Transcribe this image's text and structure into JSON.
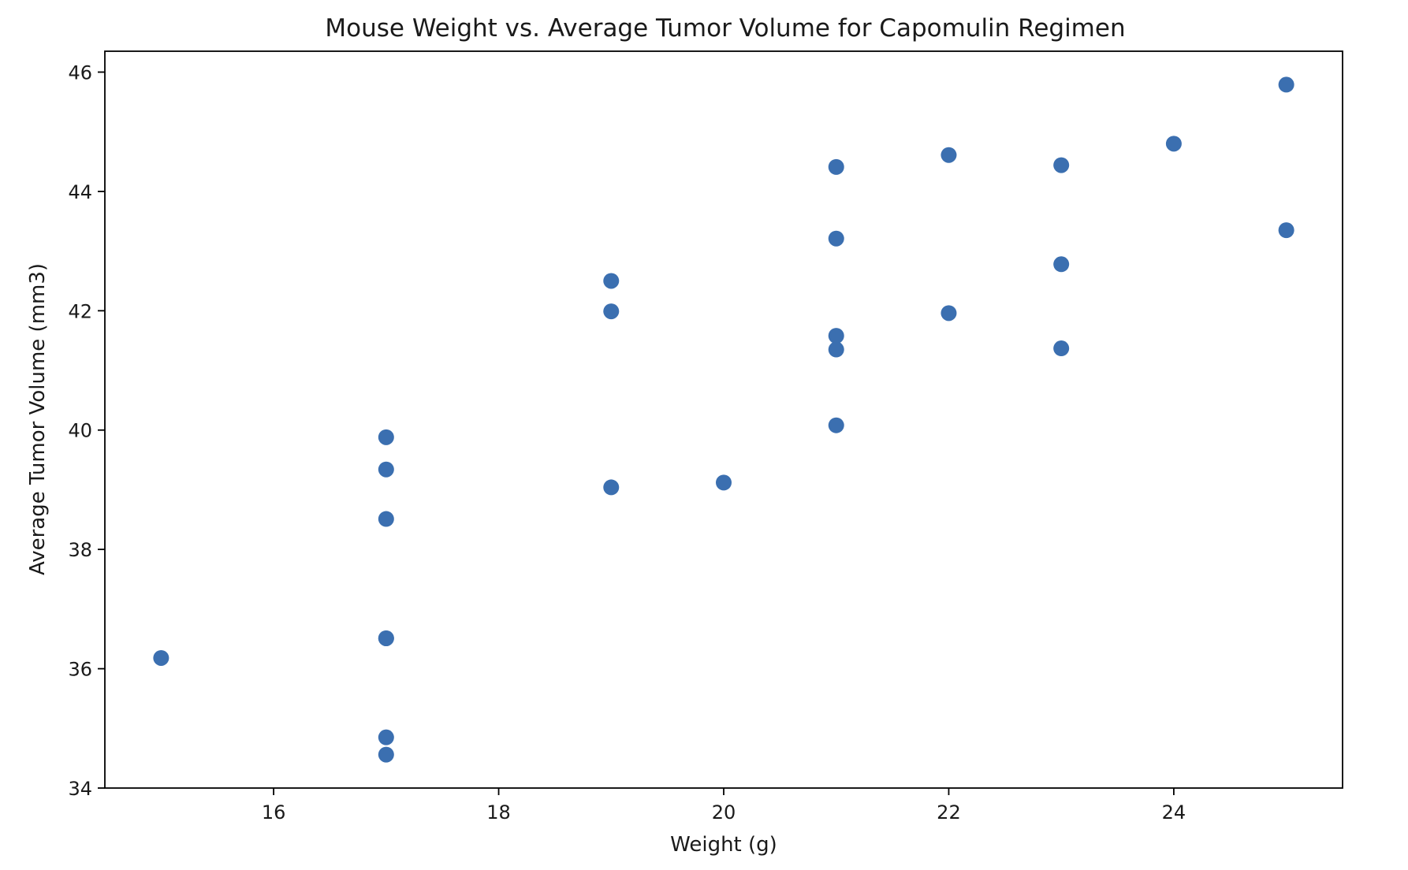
{
  "chart_data": {
    "type": "scatter",
    "title": "Mouse Weight vs. Average Tumor Volume for Capomulin Regimen",
    "xlabel": "Weight (g)",
    "ylabel": "Average Tumor Volume (mm3)",
    "xlim": [
      14.5,
      25.5
    ],
    "ylim": [
      34,
      46.35
    ],
    "xticks": [
      16,
      18,
      20,
      22,
      24
    ],
    "yticks": [
      34,
      36,
      38,
      40,
      42,
      44,
      46
    ],
    "grid": false,
    "marker_color": "#3b6fb0",
    "points": [
      {
        "x": 15,
        "y": 36.18
      },
      {
        "x": 17,
        "y": 39.88
      },
      {
        "x": 17,
        "y": 39.34
      },
      {
        "x": 17,
        "y": 38.51
      },
      {
        "x": 17,
        "y": 36.51
      },
      {
        "x": 17,
        "y": 36.51
      },
      {
        "x": 17,
        "y": 34.85
      },
      {
        "x": 17,
        "y": 34.56
      },
      {
        "x": 19,
        "y": 42.5
      },
      {
        "x": 19,
        "y": 41.99
      },
      {
        "x": 19,
        "y": 39.04
      },
      {
        "x": 20,
        "y": 39.12
      },
      {
        "x": 21,
        "y": 44.41
      },
      {
        "x": 21,
        "y": 43.21
      },
      {
        "x": 21,
        "y": 41.58
      },
      {
        "x": 21,
        "y": 41.35
      },
      {
        "x": 21,
        "y": 40.08
      },
      {
        "x": 22,
        "y": 44.61
      },
      {
        "x": 22,
        "y": 41.96
      },
      {
        "x": 23,
        "y": 44.44
      },
      {
        "x": 23,
        "y": 42.78
      },
      {
        "x": 23,
        "y": 41.37
      },
      {
        "x": 24,
        "y": 44.8
      },
      {
        "x": 25,
        "y": 45.79
      },
      {
        "x": 25,
        "y": 43.35
      }
    ]
  }
}
